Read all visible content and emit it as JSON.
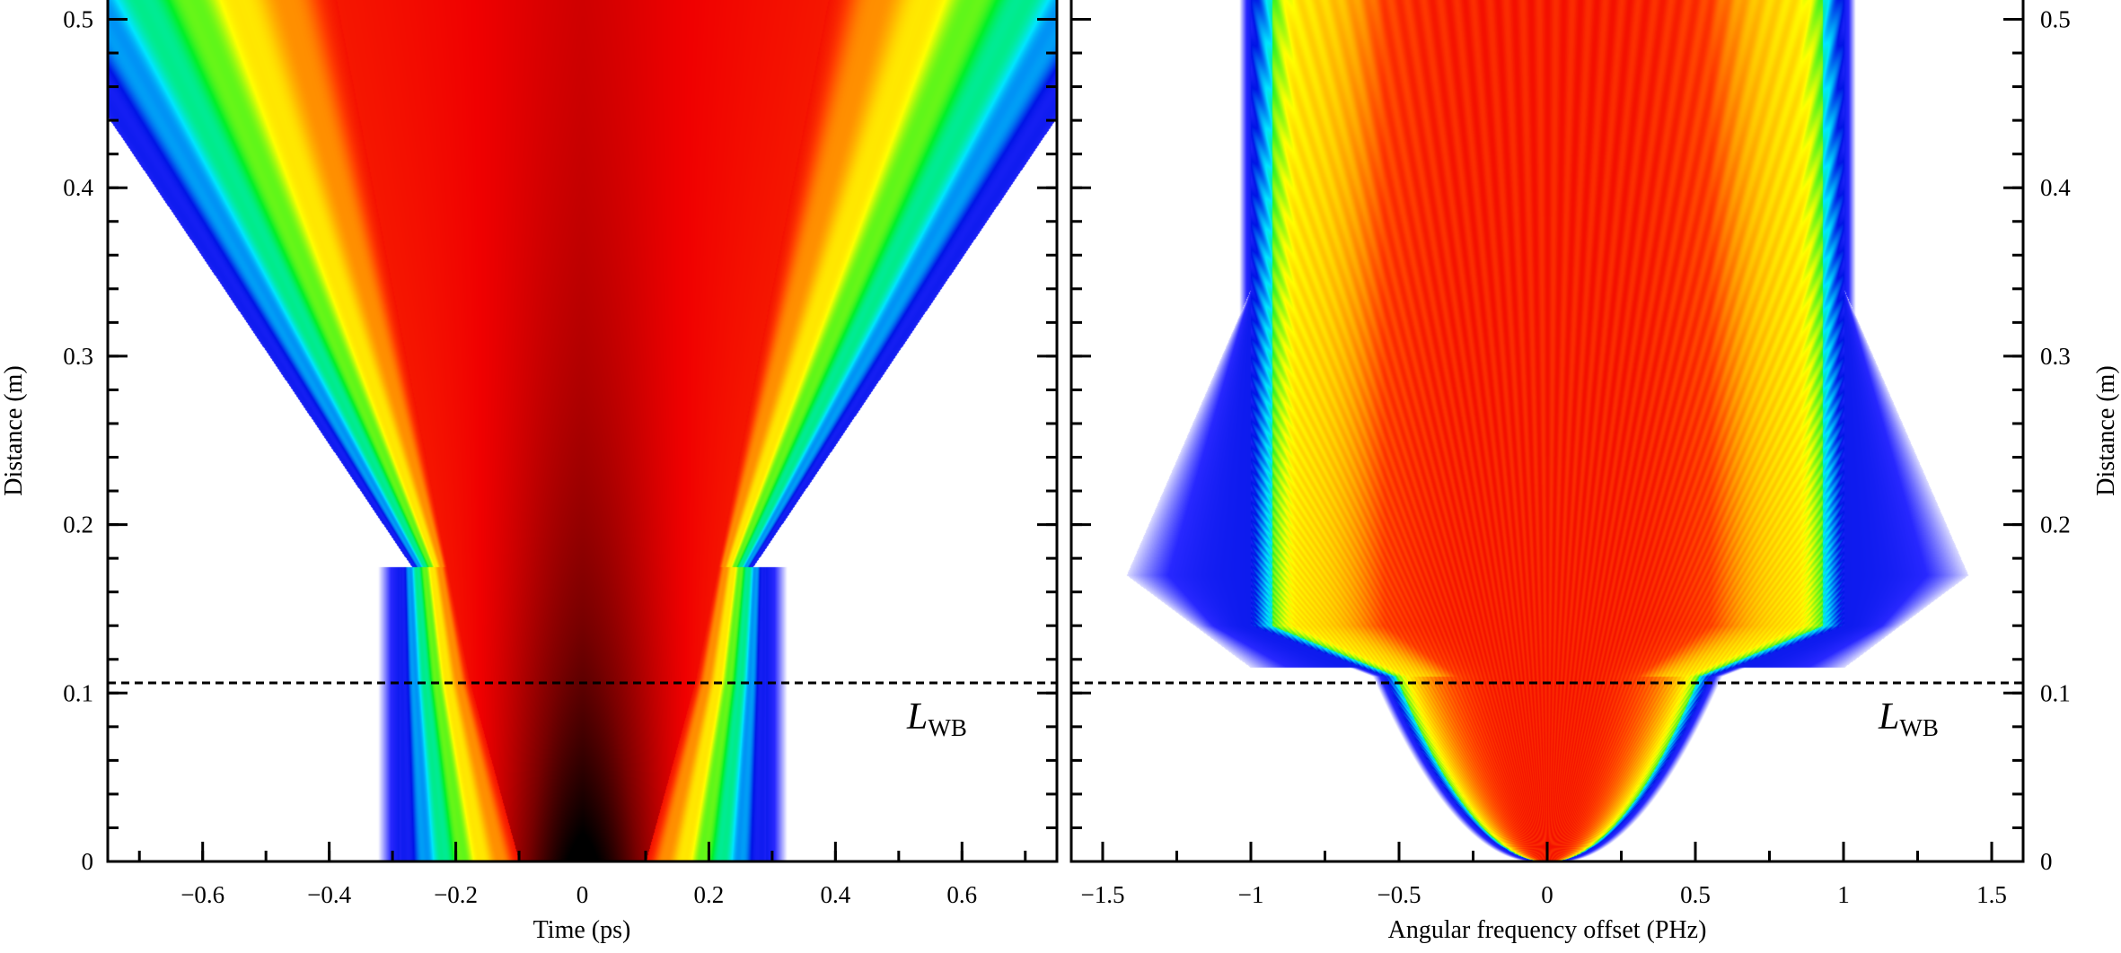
{
  "chart_data": [
    {
      "type": "heatmap",
      "panel": "left",
      "xlabel": "Time (ps)",
      "ylabel": "Distance (m)",
      "xlim": [
        -0.75,
        0.75
      ],
      "ylim": [
        0,
        0.511
      ],
      "xticks": [
        -0.6,
        -0.4,
        -0.2,
        0,
        0.2,
        0.4,
        0.6
      ],
      "xtick_labels": [
        "−0.6",
        "−0.4",
        "−0.2",
        "0",
        "0.2",
        "0.4",
        "0.6"
      ],
      "yticks": [
        0,
        0.1,
        0.2,
        0.3,
        0.4,
        0.5
      ],
      "ytick_labels": [
        "0",
        "0.1",
        "0.2",
        "0.3",
        "0.4",
        "0.5"
      ],
      "ylabel_side": "left",
      "dashed_line_y": 0.106,
      "annotation": {
        "main": "L",
        "sub": "WB"
      },
      "description_values": {
        "initial_halfwidth_ps": 0.29,
        "wavebreaking_distance_m": 0.106
      }
    },
    {
      "type": "heatmap",
      "panel": "right",
      "xlabel": "Angular frequency offset (PHz)",
      "ylabel": "Distance (m)",
      "xlim": [
        -1.6,
        1.6
      ],
      "ylim": [
        0,
        0.511
      ],
      "xticks": [
        -1.5,
        -1,
        -0.5,
        0,
        0.5,
        1,
        1.5
      ],
      "xtick_labels": [
        "−1.5",
        "−1",
        "−0.5",
        "0",
        "0.5",
        "1",
        "1.5"
      ],
      "yticks": [
        0,
        0.1,
        0.2,
        0.3,
        0.4,
        0.5
      ],
      "ytick_labels": [
        "0",
        "0.1",
        "0.2",
        "0.3",
        "0.4",
        "0.5"
      ],
      "ylabel_side": "right",
      "dashed_line_y": 0.106,
      "annotation": {
        "main": "L",
        "sub": "WB"
      }
    }
  ]
}
